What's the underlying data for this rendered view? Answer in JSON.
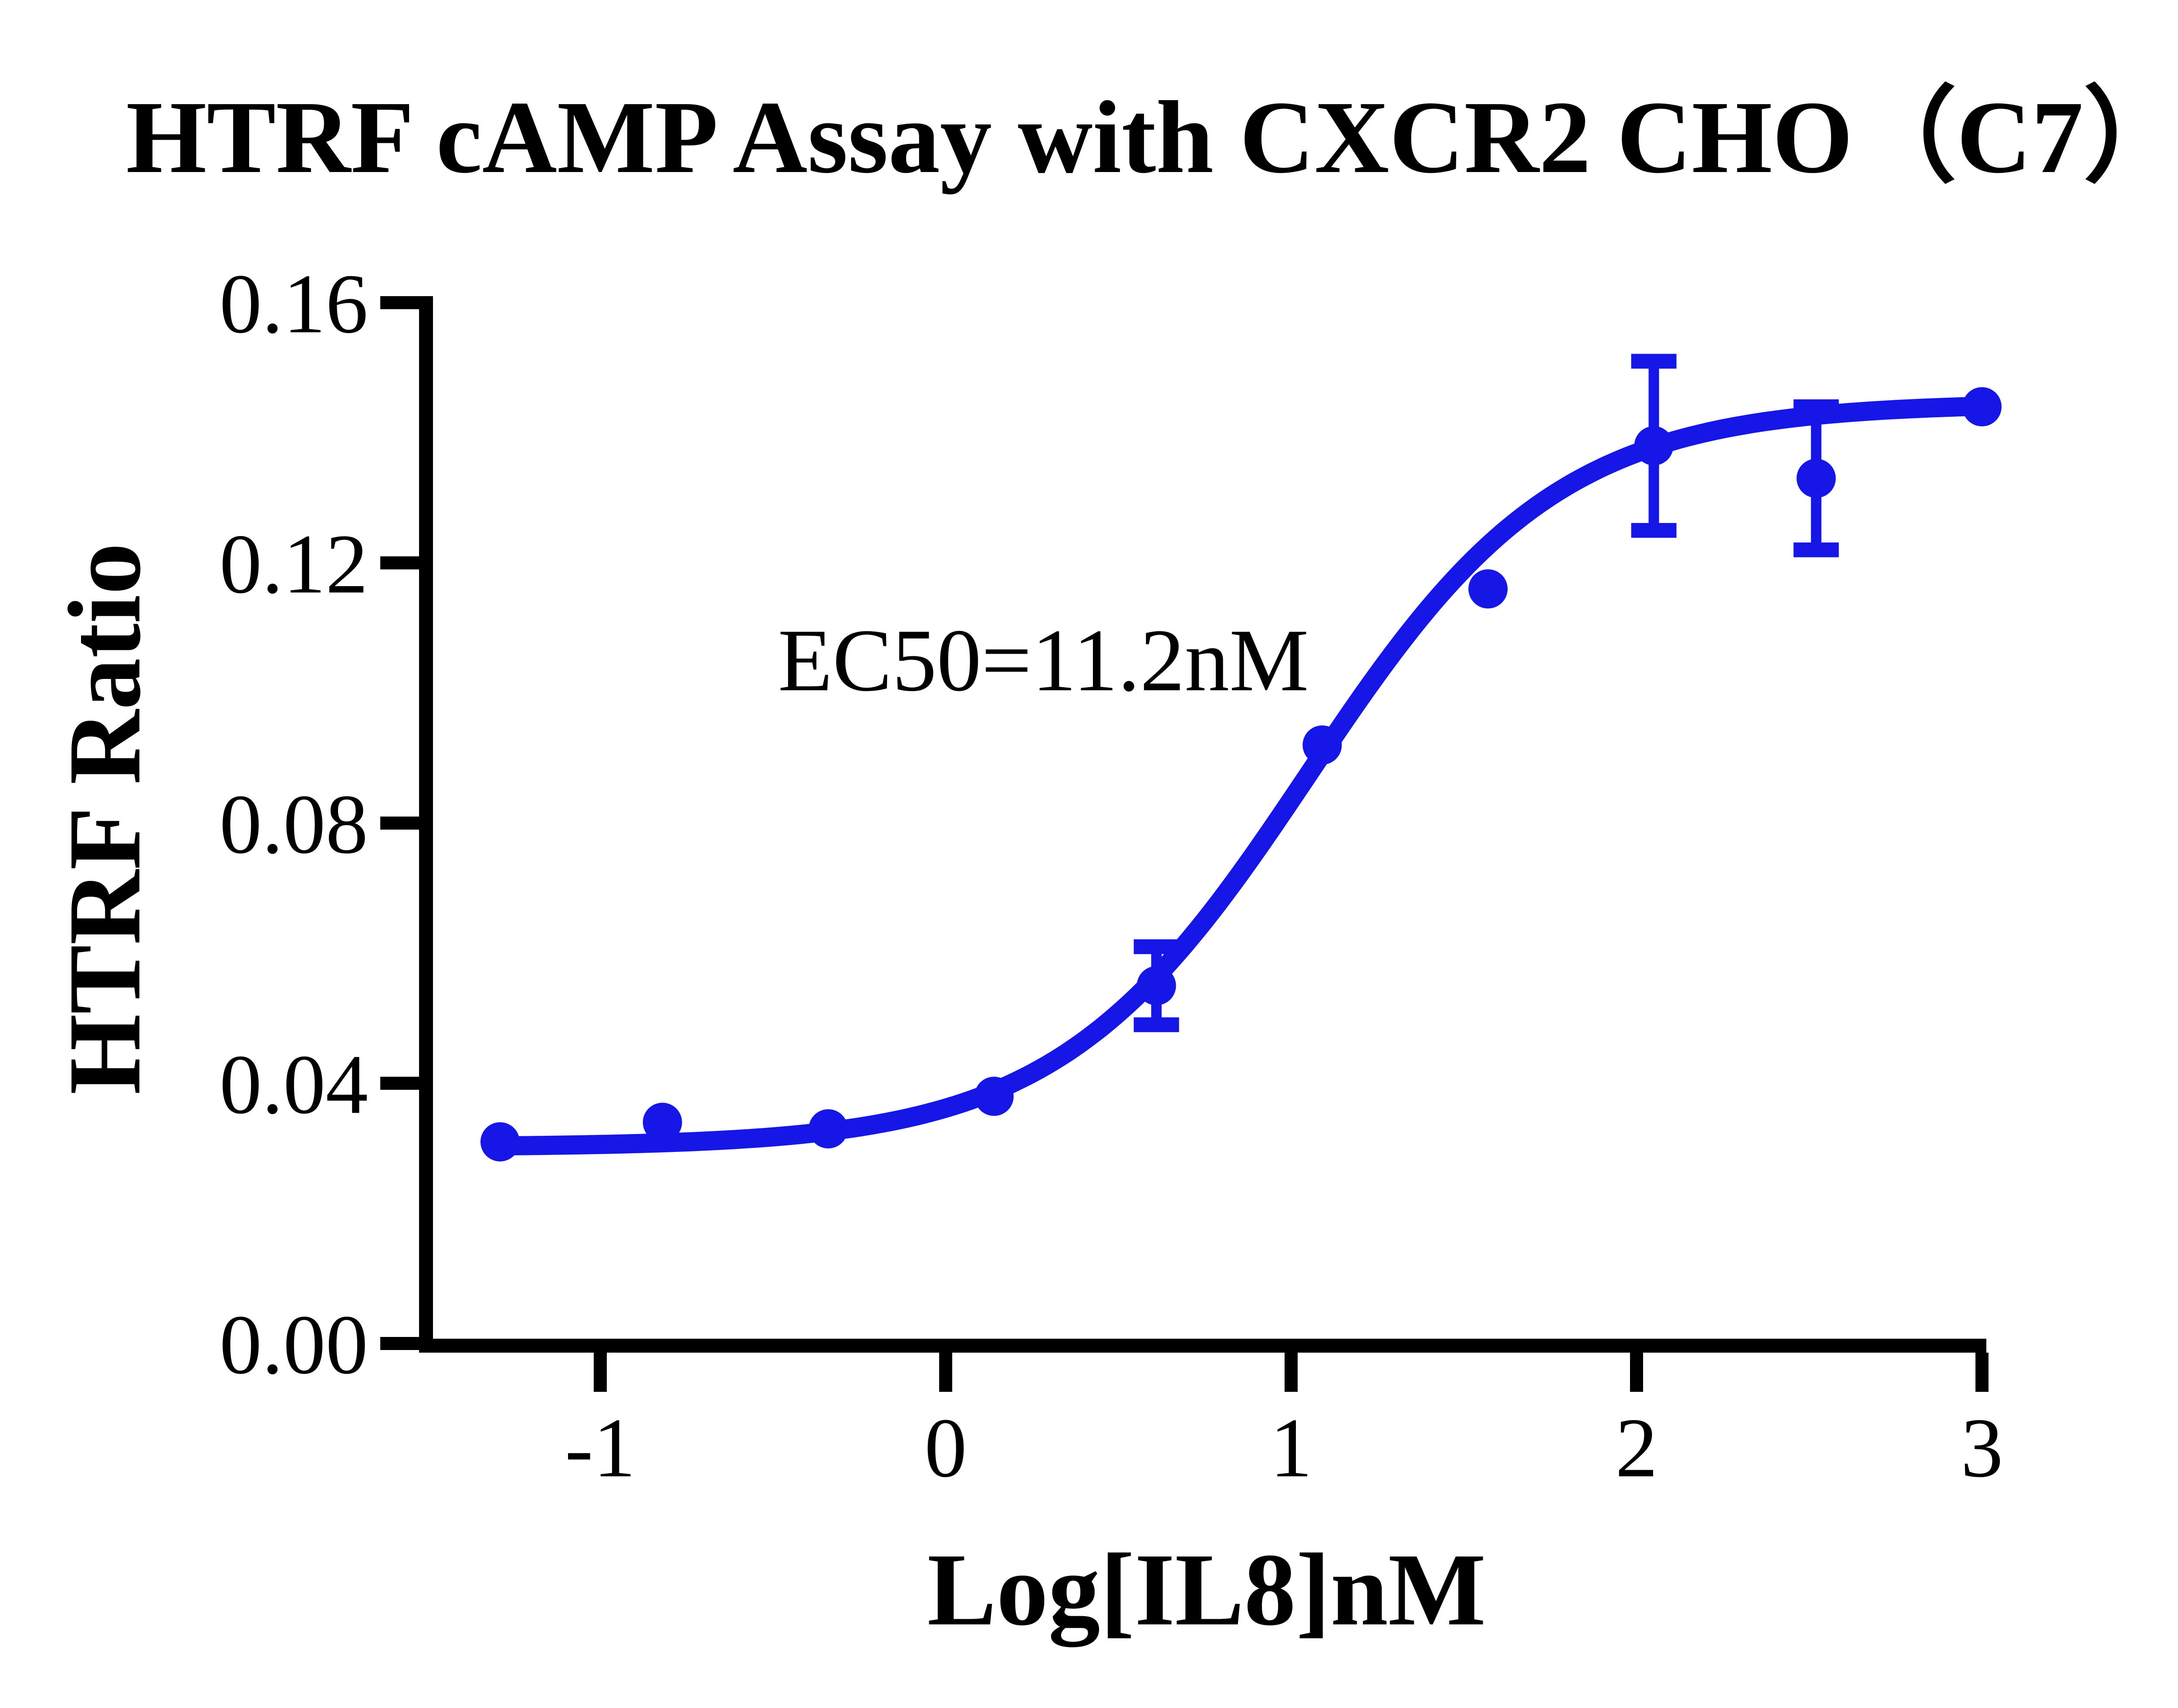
{
  "chart_data": {
    "type": "scatter",
    "title": "HTRF cAMP Assay with CXCR2 CHO（C7）",
    "xlabel": "Log[IL8]nM",
    "ylabel": "HTRF Ratio",
    "annotation": "EC50=11.2nM",
    "color": "#1616E6",
    "axis_color": "#000000",
    "grid": false,
    "legend_position": "none",
    "xlim": [
      -1.52,
      3.0
    ],
    "ylim": [
      0,
      0.16
    ],
    "x_ticks": [
      -1,
      0,
      1,
      2,
      3
    ],
    "y_ticks": [
      {
        "value": 0.0,
        "label": "0.00"
      },
      {
        "value": 0.04,
        "label": "0.04"
      },
      {
        "value": 0.08,
        "label": "0.08"
      },
      {
        "value": 0.12,
        "label": "0.12"
      },
      {
        "value": 0.16,
        "label": "0.16"
      }
    ],
    "points": [
      {
        "x": -1.29,
        "y": 0.031,
        "err": 0
      },
      {
        "x": -0.82,
        "y": 0.034,
        "err": 0
      },
      {
        "x": -0.34,
        "y": 0.033,
        "err": 0
      },
      {
        "x": 0.14,
        "y": 0.038,
        "err": 0
      },
      {
        "x": 0.61,
        "y": 0.055,
        "err": 0.006
      },
      {
        "x": 1.09,
        "y": 0.092,
        "err": 0
      },
      {
        "x": 1.57,
        "y": 0.116,
        "err": 0
      },
      {
        "x": 2.05,
        "y": 0.138,
        "err": 0.013
      },
      {
        "x": 2.52,
        "y": 0.133,
        "err": 0.011
      },
      {
        "x": 3.0,
        "y": 0.144,
        "err": 0
      }
    ],
    "fit": {
      "model": "4PL-sigmoid",
      "bottom": 0.0302,
      "top": 0.1446,
      "logEC50": 1.049,
      "hill": 1.2,
      "ec50_nM": 11.2,
      "curve_x_start": -1.29,
      "curve_x_end": 2.99
    }
  }
}
